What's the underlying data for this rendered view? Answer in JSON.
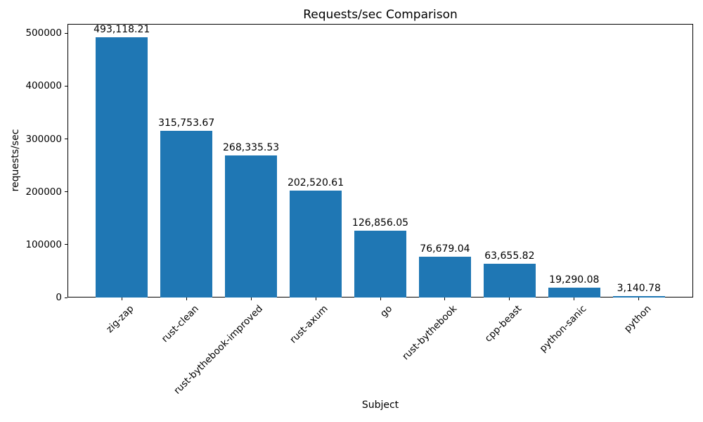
{
  "chart_data": {
    "type": "bar",
    "title": "Requests/sec Comparison",
    "xlabel": "Subject",
    "ylabel": "requests/sec",
    "categories": [
      "zig-zap",
      "rust-clean",
      "rust-bythebook-improved",
      "rust-axum",
      "go",
      "rust-bythebook",
      "cpp-beast",
      "python-sanic",
      "python"
    ],
    "values": [
      493118.21,
      315753.67,
      268335.53,
      202520.61,
      126856.05,
      76679.04,
      63655.82,
      19290.08,
      3140.78
    ],
    "value_labels": [
      "493,118.21",
      "315,753.67",
      "268,335.53",
      "202,520.61",
      "126,856.05",
      "76,679.04",
      "63,655.82",
      "19,290.08",
      "3,140.78"
    ],
    "ylim": [
      0,
      517774
    ],
    "yticks": [
      0,
      100000,
      200000,
      300000,
      400000,
      500000
    ],
    "ytick_labels": [
      "0",
      "100000",
      "200000",
      "300000",
      "400000",
      "500000"
    ],
    "bar_color": "#1f77b4",
    "grid": false,
    "legend": null,
    "x_tick_label_rotation_deg": 45
  }
}
